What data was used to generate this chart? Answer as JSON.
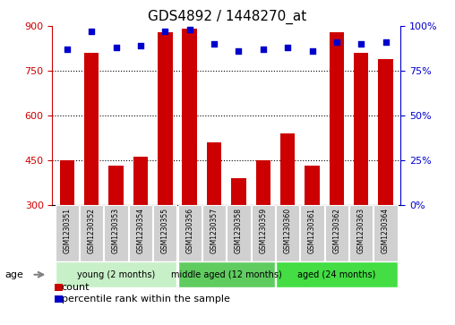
{
  "title": "GDS4892 / 1448270_at",
  "samples": [
    "GSM1230351",
    "GSM1230352",
    "GSM1230353",
    "GSM1230354",
    "GSM1230355",
    "GSM1230356",
    "GSM1230357",
    "GSM1230358",
    "GSM1230359",
    "GSM1230360",
    "GSM1230361",
    "GSM1230362",
    "GSM1230363",
    "GSM1230364"
  ],
  "counts": [
    450,
    810,
    430,
    460,
    880,
    890,
    510,
    390,
    450,
    540,
    430,
    880,
    810,
    790
  ],
  "percentiles": [
    87,
    97,
    88,
    89,
    97,
    98,
    90,
    86,
    87,
    88,
    86,
    91,
    90,
    91
  ],
  "ylim_left": [
    300,
    900
  ],
  "ylim_right": [
    0,
    100
  ],
  "yticks_left": [
    300,
    450,
    600,
    750,
    900
  ],
  "yticks_right": [
    0,
    25,
    50,
    75,
    100
  ],
  "groups": [
    {
      "label": "young (2 months)",
      "start": 0,
      "end": 4,
      "color": "#C8F0C8"
    },
    {
      "label": "middle aged (12 months)",
      "start": 5,
      "end": 8,
      "color": "#60CC60"
    },
    {
      "label": "aged (24 months)",
      "start": 9,
      "end": 13,
      "color": "#44DD44"
    }
  ],
  "bar_color": "#CC0000",
  "dot_color": "#0000CC",
  "background_color": "#ffffff",
  "title_fontsize": 11,
  "tick_fontsize": 8,
  "label_color_left": "#CC0000",
  "label_color_right": "#0000CC",
  "sample_box_color": "#D0D0D0",
  "grid_color": "#000000"
}
